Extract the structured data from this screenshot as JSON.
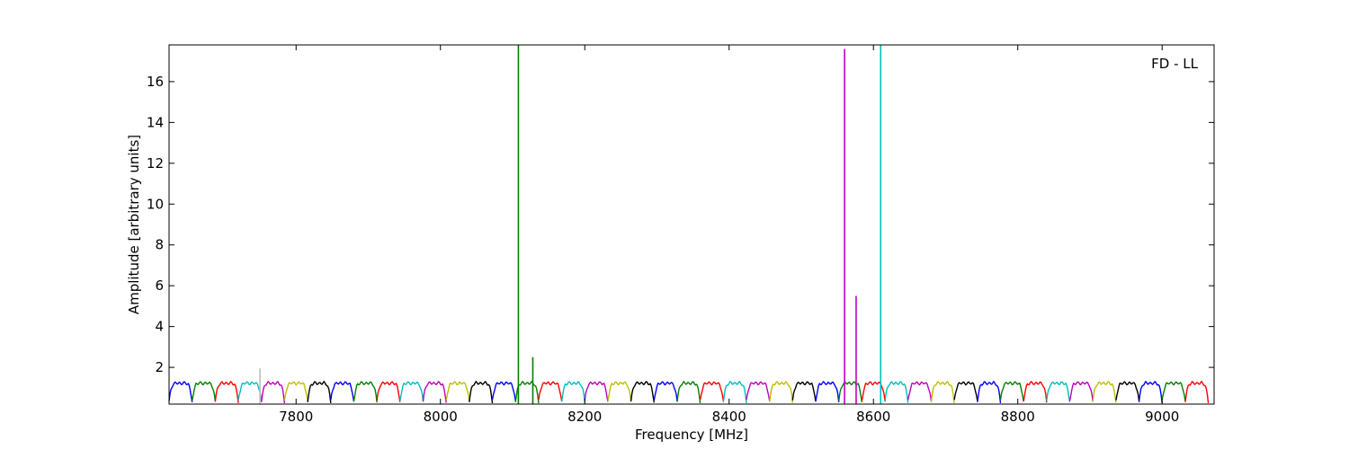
{
  "chart_data": {
    "type": "line",
    "title": "",
    "annotation": "FD - LL",
    "xlabel": "Frequency [MHz]",
    "ylabel": "Amplitude [arbitrary units]",
    "xlim": [
      7624,
      9072
    ],
    "ylim": [
      0.2,
      17.8
    ],
    "x_ticks": [
      7800,
      8000,
      8200,
      8400,
      8600,
      8800,
      9000
    ],
    "y_ticks": [
      2,
      4,
      6,
      8,
      10,
      12,
      14,
      16
    ],
    "grid": false,
    "legend": "none",
    "palette": [
      "#0000ff",
      "#008000",
      "#ff0000",
      "#00bfbf",
      "#bf00bf",
      "#bfbf00",
      "#000000"
    ],
    "subband_width_MHz": 32,
    "subband_start_MHz": 7624,
    "subband_profile": {
      "x": [
        0,
        0.06,
        0.15,
        0.3,
        0.5,
        0.7,
        0.85,
        0.94,
        1
      ],
      "y": [
        0.35,
        0.8,
        1.15,
        1.25,
        1.2,
        1.25,
        1.15,
        0.8,
        0.3
      ]
    },
    "spikes": [
      {
        "x": 7750,
        "y": 1.95,
        "color": "#bfbfbf"
      },
      {
        "x": 8108,
        "y": 17.8,
        "color": "#008000"
      },
      {
        "x": 8128,
        "y": 2.5,
        "color": "#008000"
      },
      {
        "x": 8560,
        "y": 17.6,
        "color": "#bf00bf"
      },
      {
        "x": 8576,
        "y": 5.5,
        "color": "#bf00bf"
      },
      {
        "x": 8610,
        "y": 17.8,
        "color": "#00bfbf"
      }
    ]
  }
}
